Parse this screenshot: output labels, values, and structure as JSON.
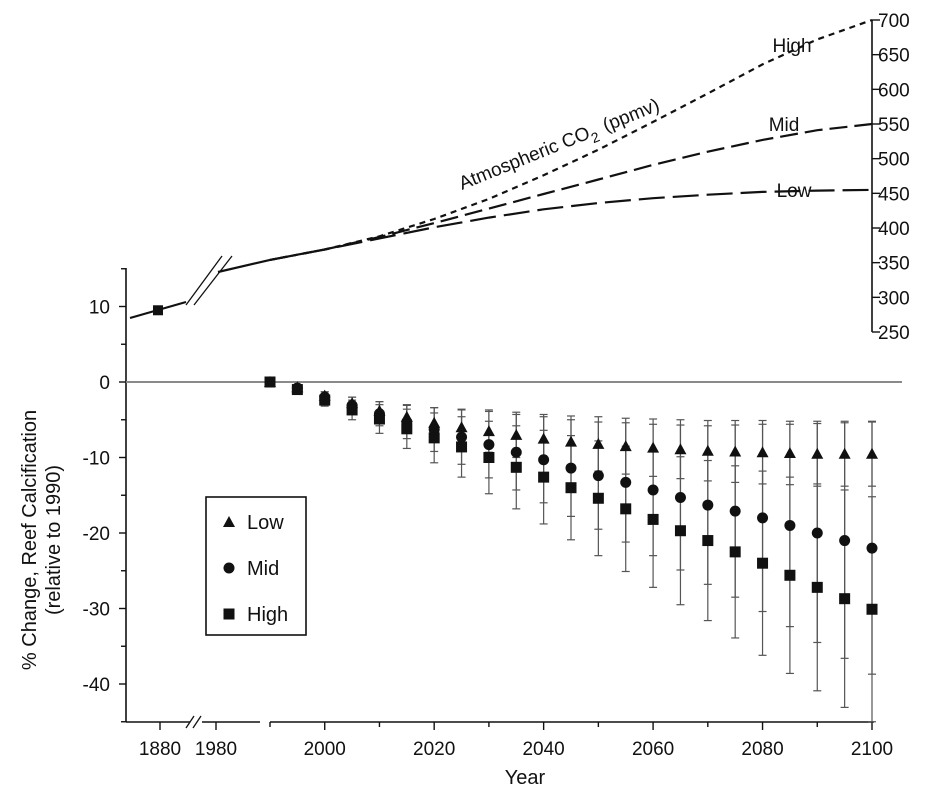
{
  "chart_data": {
    "type": "scatter",
    "title": "",
    "xlabel": "Year",
    "ylabel": "% Change, Reef Calcification",
    "ylabel_sub": "(relative to 1990)",
    "xlim": [
      1990,
      2100
    ],
    "ylim": [
      -45,
      15
    ],
    "x_ticks": [
      2000,
      2020,
      2040,
      2060,
      2080,
      2100
    ],
    "x_break_ticks": [
      1880,
      1980
    ],
    "y_ticks": [
      10,
      0,
      -10,
      -20,
      -30,
      -40
    ],
    "right_axis": {
      "label": "Atmospheric CO",
      "label_sub": "2",
      "label_unit": "(ppmv)",
      "ticks": [
        700,
        650,
        600,
        550,
        500,
        450,
        400,
        350,
        300,
        250
      ]
    },
    "historical": {
      "x": [
        1880,
        1980
      ],
      "point": {
        "year": 1880,
        "value": 9.5
      }
    },
    "co2_scenarios": [
      {
        "name": "High",
        "years": [
          1990,
          2000,
          2010,
          2020,
          2030,
          2040,
          2050,
          2060,
          2070,
          2080,
          2090,
          2100
        ],
        "ppmv": [
          354,
          369,
          388,
          413,
          442,
          476,
          513,
          553,
          594,
          636,
          672,
          700
        ]
      },
      {
        "name": "Mid",
        "years": [
          1990,
          2000,
          2010,
          2020,
          2030,
          2040,
          2050,
          2060,
          2070,
          2080,
          2090,
          2100
        ],
        "ppmv": [
          354,
          369,
          387,
          407,
          428,
          449,
          470,
          491,
          510,
          527,
          541,
          550
        ]
      },
      {
        "name": "Low",
        "years": [
          1990,
          2000,
          2010,
          2020,
          2030,
          2040,
          2050,
          2060,
          2070,
          2080,
          2090,
          2100
        ],
        "ppmv": [
          354,
          369,
          385,
          401,
          415,
          427,
          436,
          443,
          448,
          452,
          454,
          455
        ]
      }
    ],
    "calcification_x": [
      1990,
      1995,
      2000,
      2005,
      2010,
      2015,
      2020,
      2025,
      2030,
      2035,
      2040,
      2045,
      2050,
      2055,
      2060,
      2065,
      2070,
      2075,
      2080,
      2085,
      2090,
      2095,
      2100
    ],
    "series": [
      {
        "name": "Low",
        "marker": "triangle",
        "values": [
          0,
          -0.7,
          -1.8,
          -2.8,
          -3.8,
          -4.6,
          -5.4,
          -6.0,
          -6.5,
          -7.0,
          -7.5,
          -7.9,
          -8.2,
          -8.5,
          -8.7,
          -8.9,
          -9.1,
          -9.2,
          -9.3,
          -9.4,
          -9.5,
          -9.5,
          -9.5
        ],
        "err_low": [
          0,
          0.2,
          0.5,
          0.8,
          1.2,
          1.6,
          2.0,
          2.4,
          2.8,
          3.0,
          3.2,
          3.4,
          3.6,
          3.7,
          3.8,
          3.9,
          4.0,
          4.1,
          4.2,
          4.2,
          4.3,
          4.3,
          4.3
        ],
        "err_high": [
          0,
          0.2,
          0.5,
          0.8,
          1.2,
          1.6,
          2.0,
          2.4,
          2.8,
          3.0,
          3.2,
          3.4,
          3.6,
          3.7,
          3.8,
          3.9,
          4.0,
          4.1,
          4.2,
          4.2,
          4.3,
          4.3,
          4.3
        ]
      },
      {
        "name": "Mid",
        "marker": "circle",
        "values": [
          0,
          -0.8,
          -2.0,
          -3.1,
          -4.2,
          -5.3,
          -6.3,
          -7.3,
          -8.3,
          -9.3,
          -10.3,
          -11.4,
          -12.4,
          -13.3,
          -14.3,
          -15.3,
          -16.3,
          -17.1,
          -18.0,
          -19.0,
          -20.0,
          -21.0,
          -22.0
        ],
        "err_low": [
          0,
          0.3,
          0.7,
          1.1,
          1.6,
          2.2,
          2.9,
          3.6,
          4.4,
          5.0,
          5.7,
          6.4,
          7.1,
          7.9,
          8.7,
          9.6,
          10.5,
          11.4,
          12.4,
          13.4,
          14.5,
          15.6,
          16.7
        ],
        "err_high": [
          0,
          0.3,
          0.7,
          1.1,
          1.6,
          2.2,
          2.9,
          3.6,
          4.4,
          5.0,
          5.7,
          6.4,
          7.1,
          7.9,
          8.7,
          9.6,
          10.5,
          11.4,
          12.4,
          13.4,
          14.5,
          15.6,
          16.7
        ]
      },
      {
        "name": "High",
        "marker": "square",
        "values": [
          0,
          -1.0,
          -2.4,
          -3.7,
          -4.9,
          -6.2,
          -7.4,
          -8.6,
          -10.0,
          -11.3,
          -12.6,
          -14.0,
          -15.4,
          -16.8,
          -18.2,
          -19.7,
          -21.0,
          -22.5,
          -24.0,
          -25.6,
          -27.2,
          -28.7,
          -30.1
        ],
        "err_low": [
          0,
          0.3,
          0.8,
          1.3,
          1.9,
          2.6,
          3.3,
          4.0,
          4.8,
          5.5,
          6.2,
          6.9,
          7.6,
          8.3,
          9.0,
          9.8,
          10.6,
          11.4,
          12.2,
          13.0,
          13.7,
          14.4,
          14.9
        ],
        "err_high": [
          0,
          0.3,
          0.8,
          1.3,
          1.9,
          2.6,
          3.3,
          4.0,
          4.8,
          5.5,
          6.2,
          6.9,
          7.6,
          8.3,
          9.0,
          9.8,
          10.6,
          11.4,
          12.2,
          13.0,
          13.7,
          14.4,
          14.9
        ]
      }
    ],
    "legend": {
      "placement": "lower-left",
      "entries": [
        "Low",
        "Mid",
        "High"
      ]
    },
    "grid": false,
    "zero_line": true,
    "colors": {
      "ink": "#111111",
      "zero_line": "#8a8a8a",
      "error_bar": "#555555"
    }
  }
}
